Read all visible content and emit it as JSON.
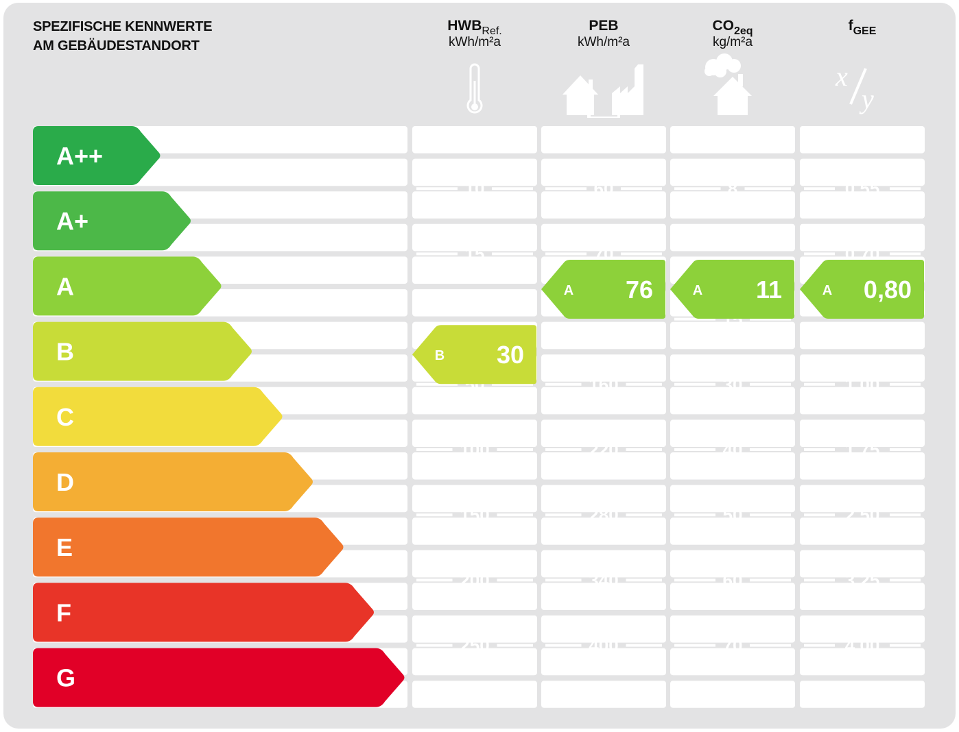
{
  "title_lines": [
    "SPEZIFISCHE KENNWERTE",
    "AM GEBÄUDESTANDORT"
  ],
  "columns": [
    {
      "name": "HWB",
      "sub": "Ref.",
      "sub_bold": false,
      "unit": "kWh/m²a",
      "icon": "thermometer-icon",
      "ticks": [
        "10",
        "15",
        "",
        "50",
        "100",
        "150",
        "200",
        "250"
      ],
      "marker": {
        "class": "B",
        "value": "30",
        "color": "#c8dc38"
      }
    },
    {
      "name": "PEB",
      "sub": "",
      "sub_bold": false,
      "unit": "kWh/m²a",
      "icon": "house-factory-icon",
      "ticks": [
        "60",
        "70",
        "",
        "160",
        "220",
        "280",
        "340",
        "400"
      ],
      "marker": {
        "class": "A",
        "value": "76",
        "color": "#8dd13a"
      }
    },
    {
      "name": "CO",
      "sub": "2eq",
      "sub_bold": true,
      "unit": "kg/m²a",
      "icon": "house-emission-icon",
      "ticks": [
        "8",
        "",
        "15",
        "30",
        "40",
        "50",
        "60",
        "70"
      ],
      "marker": {
        "class": "A",
        "value": "11",
        "color": "#8dd13a"
      }
    },
    {
      "name": "f",
      "sub": "GEE",
      "sub_bold": true,
      "unit": "",
      "icon": "ratio-icon",
      "ticks": [
        "0,55",
        "0,70",
        "",
        "1,00",
        "1,75",
        "2,50",
        "3,25",
        "4,00"
      ],
      "marker": {
        "class": "A",
        "value": "0,80",
        "color": "#8dd13a"
      }
    }
  ],
  "classes": [
    {
      "label": "A++",
      "color": "#2aab4a"
    },
    {
      "label": "A+",
      "color": "#4cb848"
    },
    {
      "label": "A",
      "color": "#8dd13a"
    },
    {
      "label": "B",
      "color": "#c8dc38"
    },
    {
      "label": "C",
      "color": "#f2dc3c"
    },
    {
      "label": "D",
      "color": "#f4ae34"
    },
    {
      "label": "E",
      "color": "#f1762d"
    },
    {
      "label": "F",
      "color": "#e83428"
    },
    {
      "label": "G",
      "color": "#e10027"
    }
  ],
  "chart_data": {
    "type": "table",
    "categories": [
      "A++",
      "A+",
      "A",
      "B",
      "C",
      "D",
      "E",
      "F",
      "G"
    ],
    "series": [
      {
        "name": "HWBRef.",
        "class": "B",
        "value": 30,
        "boundaries": [
          10,
          15,
          null,
          50,
          100,
          150,
          200,
          250
        ]
      },
      {
        "name": "PEB",
        "class": "A",
        "value": 76,
        "boundaries": [
          60,
          70,
          null,
          160,
          220,
          280,
          340,
          400
        ]
      },
      {
        "name": "CO2eq",
        "class": "A",
        "value": 11,
        "boundaries": [
          8,
          null,
          15,
          30,
          40,
          50,
          60,
          70
        ]
      },
      {
        "name": "fGEE",
        "class": "A",
        "value": 0.8,
        "boundaries": [
          0.55,
          0.7,
          null,
          1.0,
          1.75,
          2.5,
          3.25,
          4.0
        ]
      }
    ]
  }
}
